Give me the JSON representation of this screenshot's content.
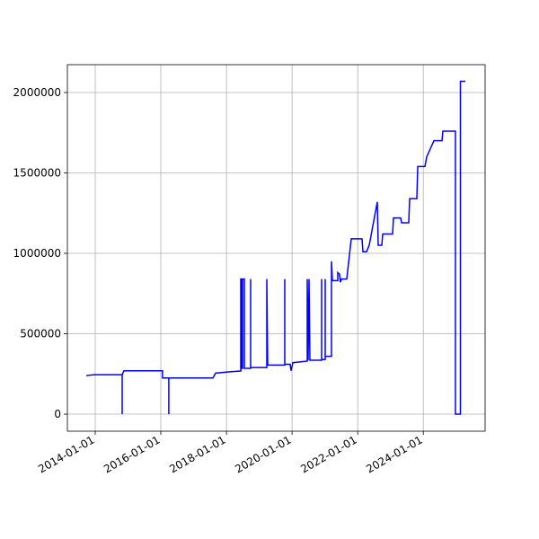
{
  "chart_data": {
    "type": "line",
    "color": "#0000ff",
    "grid": true,
    "xlim": [
      "2013-02-25",
      "2025-11-19"
    ],
    "xticks": [
      "2014-01-01",
      "2016-01-01",
      "2018-01-01",
      "2020-01-01",
      "2022-01-01",
      "2024-01-01"
    ],
    "ylim": [
      -106000,
      2173000
    ],
    "yticks": [
      0,
      500000,
      1000000,
      1500000,
      2000000
    ],
    "x": [
      "2013-09-23",
      "2013-12-22",
      "2014-10-28",
      "2014-10-28",
      "2014-10-28",
      "2014-11-17",
      "2016-01-20",
      "2016-01-20",
      "2016-03-30",
      "2016-03-30",
      "2016-03-30",
      "2017-08-03",
      "2017-09-02",
      "2018-01-10",
      "2018-06-09",
      "2018-06-09",
      "2018-06-19",
      "2018-06-19",
      "2018-06-29",
      "2018-06-29",
      "2018-07-19",
      "2018-07-19",
      "2018-09-27",
      "2018-09-27",
      "2018-09-27",
      "2019-03-26",
      "2019-03-26",
      "2019-04-05",
      "2019-10-12",
      "2019-10-12",
      "2019-10-12",
      "2019-12-11",
      "2019-12-21",
      "2020-01-10",
      "2020-06-18",
      "2020-06-18",
      "2020-06-28",
      "2020-07-08",
      "2020-07-18",
      "2020-11-25",
      "2020-11-25",
      "2020-11-25",
      "2021-01-04",
      "2021-01-04",
      "2021-01-04",
      "2021-03-15",
      "2021-03-15",
      "2021-03-25",
      "2021-05-24",
      "2021-05-24",
      "2021-06-13",
      "2021-06-23",
      "2021-07-03",
      "2021-09-01",
      "2021-10-21",
      "2022-02-18",
      "2022-02-28",
      "2022-04-09",
      "2022-05-09",
      "2022-08-07",
      "2022-08-17",
      "2022-09-26",
      "2022-10-06",
      "2023-01-24",
      "2023-02-03",
      "2023-04-24",
      "2023-05-04",
      "2023-07-23",
      "2023-08-02",
      "2023-10-21",
      "2023-10-31",
      "2024-01-19",
      "2024-02-08",
      "2024-03-19",
      "2024-04-28",
      "2024-07-27",
      "2024-08-06",
      "2024-12-24",
      "2024-12-24",
      "2025-02-17",
      "2025-02-17",
      "2025-04-13"
    ],
    "values": [
      240000,
      245000,
      245000,
      0,
      245000,
      270000,
      270000,
      225000,
      225000,
      0,
      225000,
      225000,
      255000,
      262000,
      268000,
      840000,
      840000,
      285000,
      285000,
      840000,
      840000,
      285000,
      285000,
      840000,
      290000,
      290000,
      840000,
      305000,
      305000,
      840000,
      310000,
      310000,
      270000,
      320000,
      330000,
      840000,
      335000,
      840000,
      335000,
      335000,
      840000,
      340000,
      340000,
      840000,
      360000,
      360000,
      950000,
      830000,
      830000,
      880000,
      870000,
      820000,
      840000,
      840000,
      1090000,
      1090000,
      1010000,
      1010000,
      1050000,
      1320000,
      1050000,
      1050000,
      1120000,
      1120000,
      1220000,
      1220000,
      1190000,
      1190000,
      1340000,
      1340000,
      1540000,
      1540000,
      1600000,
      1650000,
      1700000,
      1700000,
      1760000,
      1760000,
      0,
      0,
      2070000,
      2070000
    ]
  }
}
